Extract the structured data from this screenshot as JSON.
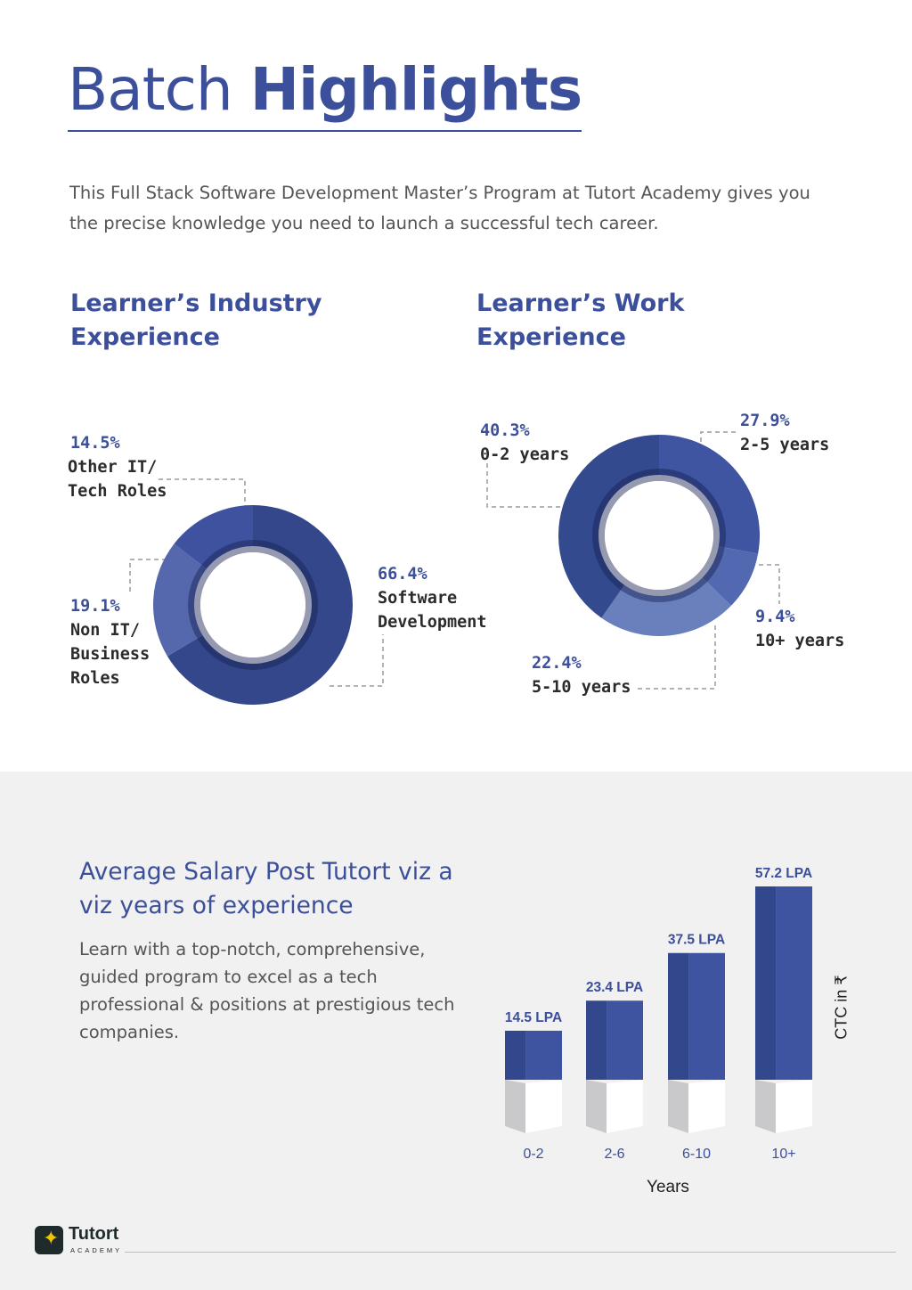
{
  "title": {
    "light": "Batch",
    "bold": "Highlights"
  },
  "intro": "This Full Stack Software Development Master’s Program at Tutort Academy gives you the precise knowledge you need to launch a successful tech career.",
  "industry": {
    "heading": "Learner’s Industry Experience",
    "segments": [
      {
        "pct": "66.4%",
        "label": "Software Development",
        "value": 66.4,
        "color": "#34478a"
      },
      {
        "pct": "19.1%",
        "label": "Non IT/ Business Roles",
        "value": 19.1,
        "color": "#5668ad"
      },
      {
        "pct": "14.5%",
        "label": "Other IT/ Tech Roles",
        "value": 14.5,
        "color": "#3f52a0"
      }
    ]
  },
  "work": {
    "heading": "Learner’s Work Experience",
    "segments": [
      {
        "pct": "27.9%",
        "label": "2-5 years",
        "value": 27.9,
        "color": "#3f55a2"
      },
      {
        "pct": "9.4%",
        "label": "10+ years",
        "value": 9.4,
        "color": "#5268b0"
      },
      {
        "pct": "22.4%",
        "label": "5-10 years",
        "value": 22.4,
        "color": "#6a80bd"
      },
      {
        "pct": "40.3%",
        "label": "0-2 years",
        "value": 40.3,
        "color": "#344a8e"
      }
    ]
  },
  "salary": {
    "heading": "Average Salary Post Tutort viz a viz years of experience",
    "description": "Learn with a top-notch, comprehensive, guided program to excel as a tech professional & positions at prestigious tech companies."
  },
  "chart_data": [
    {
      "type": "pie",
      "title": "Learner’s Industry Experience",
      "categories": [
        "Software Development",
        "Non IT/ Business Roles",
        "Other IT/ Tech Roles"
      ],
      "values": [
        66.4,
        19.1,
        14.5
      ]
    },
    {
      "type": "pie",
      "title": "Learner’s Work Experience",
      "categories": [
        "0-2 years",
        "2-5 years",
        "10+ years",
        "5-10 years"
      ],
      "values": [
        40.3,
        27.9,
        9.4,
        22.4
      ]
    },
    {
      "type": "bar",
      "title": "Average Salary Post Tutort viz a viz years of experience",
      "categories": [
        "0-2",
        "2-6",
        "6-10",
        "10+"
      ],
      "values": [
        14.5,
        23.4,
        37.5,
        57.2
      ],
      "value_labels": [
        "14.5 LPA",
        "23.4 LPA",
        "37.5 LPA",
        "57.2 LPA"
      ],
      "xlabel": "Years",
      "ylabel": "CTC in ₹",
      "ylim": [
        0,
        57.2
      ],
      "color": "#3f54a0"
    }
  ],
  "logo": {
    "name": "Tutort",
    "sub": "ACADEMY"
  }
}
